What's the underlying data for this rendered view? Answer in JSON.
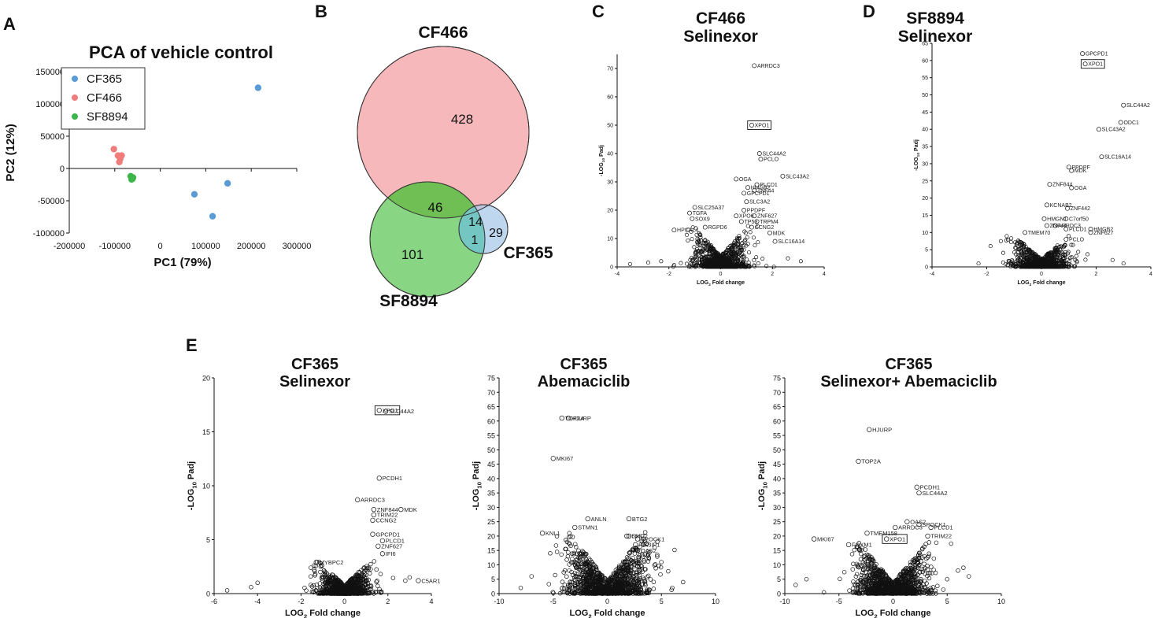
{
  "panels": {
    "A": "A",
    "B": "B",
    "C": "C",
    "D": "D",
    "E": "E"
  },
  "chart_data": [
    {
      "id": "pcaA",
      "type": "scatter",
      "title": "PCA of vehicle control",
      "xlabel": "PC1 (79%)",
      "ylabel": "PC2 (12%)",
      "xlim": [
        -200000,
        300000
      ],
      "ylim": [
        -100000,
        150000
      ],
      "xticks": [
        -200000,
        -100000,
        0,
        100000,
        200000,
        300000
      ],
      "yticks": [
        -100000,
        -50000,
        0,
        50000,
        100000,
        150000
      ],
      "legend_position": "top-left",
      "series": [
        {
          "name": "CF365",
          "color": "#5b9bd5",
          "points": [
            [
              215000,
              125000
            ],
            [
              148000,
              -23000
            ],
            [
              75000,
              -40000
            ],
            [
              115000,
              -74000
            ]
          ]
        },
        {
          "name": "CF466",
          "color": "#f07c7c",
          "points": [
            [
              -102000,
              30000
            ],
            [
              -93000,
              20000
            ],
            [
              -85000,
              20000
            ],
            [
              -90000,
              10000
            ],
            [
              -88000,
              15000
            ]
          ]
        },
        {
          "name": "SF8894",
          "color": "#3cb54a",
          "points": [
            [
              -65000,
              -12000
            ],
            [
              -62000,
              -15000
            ],
            [
              -60000,
              -14000
            ],
            [
              -63000,
              -17000
            ],
            [
              -61000,
              -16000
            ]
          ]
        }
      ]
    },
    {
      "id": "vennB",
      "type": "venn",
      "sets": [
        {
          "name": "CF466",
          "color": "#f7b8bc"
        },
        {
          "name": "SF8894",
          "color": "#7ed37a"
        },
        {
          "name": "CF365",
          "color": "#a9c8ea"
        }
      ],
      "regions": {
        "CF466_only": "428",
        "SF8894_only": "101",
        "CF365_only": "29",
        "CF466_SF8894": "46",
        "CF466_CF365": "14",
        "all_three": "1"
      }
    },
    {
      "id": "volC",
      "type": "scatter",
      "title": [
        "CF466",
        "Selinexor"
      ],
      "xlabel": "LOG2 Fold change",
      "ylabel": "-LOG10 Padj",
      "xlim": [
        -4,
        4
      ],
      "ylim": [
        0,
        75
      ],
      "xticks": [
        -4,
        -2,
        0,
        2,
        4
      ],
      "yticks": [
        0,
        10,
        20,
        30,
        40,
        50,
        60,
        70
      ],
      "labels": [
        {
          "gene": "ARRDC3",
          "x": 1.3,
          "y": 71
        },
        {
          "gene": "XPO1",
          "x": 1.2,
          "y": 50,
          "boxed": true
        },
        {
          "gene": "SLC44A2",
          "x": 1.5,
          "y": 40
        },
        {
          "gene": "PCLO",
          "x": 1.55,
          "y": 38
        },
        {
          "gene": "SLC43A2",
          "x": 2.4,
          "y": 32
        },
        {
          "gene": "OGA",
          "x": 0.6,
          "y": 31
        },
        {
          "gene": "HMGB2",
          "x": 1.05,
          "y": 28
        },
        {
          "gene": "PLCD1",
          "x": 1.4,
          "y": 29
        },
        {
          "gene": "ZNF44",
          "x": 1.3,
          "y": 27
        },
        {
          "gene": "GPCPD1",
          "x": 0.9,
          "y": 26
        },
        {
          "gene": "SLC3A2",
          "x": 1.0,
          "y": 23
        },
        {
          "gene": "PPDPF",
          "x": 0.9,
          "y": 20
        },
        {
          "gene": "SLC25A37",
          "x": -1.0,
          "y": 21
        },
        {
          "gene": "TGFA",
          "x": -1.2,
          "y": 19
        },
        {
          "gene": "SOX9",
          "x": -1.1,
          "y": 17
        },
        {
          "gene": "XPO6",
          "x": 0.6,
          "y": 18
        },
        {
          "gene": "ZNF627",
          "x": 1.3,
          "y": 18
        },
        {
          "gene": "TP53",
          "x": 0.8,
          "y": 16
        },
        {
          "gene": "TRPM4",
          "x": 1.4,
          "y": 16
        },
        {
          "gene": "CCNG2",
          "x": 1.2,
          "y": 14
        },
        {
          "gene": "RGPD6",
          "x": -0.6,
          "y": 14
        },
        {
          "gene": "MDK",
          "x": 1.9,
          "y": 12
        },
        {
          "gene": "HPCAL4",
          "x": -1.8,
          "y": 13
        },
        {
          "gene": "SLC16A14",
          "x": 2.1,
          "y": 9
        }
      ],
      "cloud": {
        "xspread": 1.2,
        "ymax": 15,
        "extra": [
          [
            -3.5,
            1
          ],
          [
            -2.8,
            1.5
          ],
          [
            -2.3,
            2
          ],
          [
            3.1,
            2
          ],
          [
            2.6,
            3
          ]
        ]
      }
    },
    {
      "id": "volD",
      "type": "scatter",
      "title": [
        "SF8894",
        "Selinexor"
      ],
      "xlabel": "LOG2 Fold change",
      "ylabel": "-LOG10 Padj",
      "xlim": [
        -4,
        4
      ],
      "ylim": [
        0,
        65
      ],
      "xticks": [
        -4,
        -2,
        0,
        2,
        4
      ],
      "yticks": [
        0,
        5,
        10,
        15,
        20,
        25,
        30,
        35,
        40,
        45,
        50,
        55,
        60,
        65
      ],
      "labels": [
        {
          "gene": "GPCPD1",
          "x": 1.5,
          "y": 62
        },
        {
          "gene": "XPO1",
          "x": 1.6,
          "y": 59,
          "boxed": true
        },
        {
          "gene": "SLC44A2",
          "x": 3.0,
          "y": 47
        },
        {
          "gene": "ODC1",
          "x": 2.9,
          "y": 42
        },
        {
          "gene": "SLC43A2",
          "x": 2.1,
          "y": 40
        },
        {
          "gene": "SLC16A14",
          "x": 2.2,
          "y": 32
        },
        {
          "gene": "PPDPF",
          "x": 1.0,
          "y": 29
        },
        {
          "gene": "MDK",
          "x": 1.1,
          "y": 28
        },
        {
          "gene": "ZNF844",
          "x": 0.3,
          "y": 24
        },
        {
          "gene": "OGA",
          "x": 1.1,
          "y": 23
        },
        {
          "gene": "KCNAB2",
          "x": 0.2,
          "y": 18
        },
        {
          "gene": "ZNF442",
          "x": 0.95,
          "y": 17
        },
        {
          "gene": "HMGN1",
          "x": 0.1,
          "y": 14
        },
        {
          "gene": "C7orf50",
          "x": 0.9,
          "y": 14
        },
        {
          "gene": "ZNF44",
          "x": 0.2,
          "y": 12
        },
        {
          "gene": "ARRDC3",
          "x": 0.5,
          "y": 12
        },
        {
          "gene": "PLCD1",
          "x": 0.9,
          "y": 11
        },
        {
          "gene": "HMGB2",
          "x": 1.8,
          "y": 11
        },
        {
          "gene": "ZNF627",
          "x": 1.8,
          "y": 10
        },
        {
          "gene": "TMEM70",
          "x": -0.6,
          "y": 10
        },
        {
          "gene": "PCLO",
          "x": 0.9,
          "y": 8
        }
      ],
      "cloud": {
        "xspread": 1.1,
        "ymax": 9,
        "extra": [
          [
            -2.3,
            1
          ],
          [
            2.6,
            2
          ],
          [
            3.0,
            1
          ]
        ]
      }
    },
    {
      "id": "volE1",
      "type": "scatter",
      "title": [
        "CF365",
        "Selinexor"
      ],
      "xlabel": "LOG2 Fold change",
      "ylabel": "-LOG10 Padj",
      "xlim": [
        -6,
        4
      ],
      "ylim": [
        0,
        20
      ],
      "xticks": [
        -6,
        -4,
        -2,
        0,
        2,
        4
      ],
      "yticks": [
        0,
        5,
        10,
        15,
        20
      ],
      "labels": [
        {
          "gene": "XPO1",
          "x": 1.6,
          "y": 17.0,
          "boxed": true
        },
        {
          "gene": "SLC44A2",
          "x": 1.9,
          "y": 16.9
        },
        {
          "gene": "PCDH1",
          "x": 1.6,
          "y": 10.7
        },
        {
          "gene": "ARRDC3",
          "x": 0.6,
          "y": 8.7
        },
        {
          "gene": "ZNF844",
          "x": 1.35,
          "y": 7.8
        },
        {
          "gene": "MDK",
          "x": 2.6,
          "y": 7.8
        },
        {
          "gene": "TRIM22",
          "x": 1.35,
          "y": 7.3
        },
        {
          "gene": "CCNG2",
          "x": 1.3,
          "y": 6.8
        },
        {
          "gene": "GPCPD1",
          "x": 1.3,
          "y": 5.5
        },
        {
          "gene": "PLCD1",
          "x": 1.75,
          "y": 4.9
        },
        {
          "gene": "ZNF627",
          "x": 1.55,
          "y": 4.4
        },
        {
          "gene": "IFI6",
          "x": 1.75,
          "y": 3.7
        },
        {
          "gene": "C5AR1",
          "x": 3.4,
          "y": 1.2
        },
        {
          "gene": "MYBPC2",
          "x": -1.3,
          "y": 2.9
        }
      ],
      "cloud": {
        "xspread": 1.3,
        "ymax": 3,
        "extra": [
          [
            -5.4,
            0.3
          ],
          [
            -4.3,
            0.6
          ],
          [
            -4.0,
            1
          ],
          [
            -1.4,
            2.6
          ],
          [
            -1.1,
            2.8
          ],
          [
            2.8,
            1.2
          ],
          [
            3.0,
            1.5
          ]
        ]
      }
    },
    {
      "id": "volE2",
      "type": "scatter",
      "title": [
        "CF365",
        "Abemaciclib"
      ],
      "xlabel": "LOG2 Fold change",
      "ylabel": "-LOG10 Padj",
      "xlim": [
        -10,
        10
      ],
      "ylim": [
        0,
        75
      ],
      "xticks": [
        -10,
        -5,
        0,
        5,
        10
      ],
      "yticks": [
        0,
        5,
        10,
        15,
        20,
        25,
        30,
        35,
        40,
        45,
        50,
        55,
        60,
        65,
        70,
        75
      ],
      "labels": [
        {
          "gene": "TOP2A",
          "x": -4.2,
          "y": 61
        },
        {
          "gene": "HJURP",
          "x": -3.6,
          "y": 61
        },
        {
          "gene": "MKI67",
          "x": -5.0,
          "y": 47
        },
        {
          "gene": "ANLN",
          "x": -1.8,
          "y": 26
        },
        {
          "gene": "BTG2",
          "x": 2.0,
          "y": 26
        },
        {
          "gene": "STMN1",
          "x": -3.0,
          "y": 23
        },
        {
          "gene": "KNL1",
          "x": -6.0,
          "y": 21
        },
        {
          "gene": "IL6ST",
          "x": 1.8,
          "y": 20
        },
        {
          "gene": "SHC2",
          "x": 2.0,
          "y": 20
        },
        {
          "gene": "SPOCK1",
          "x": 2.8,
          "y": 19
        },
        {
          "gene": "PIK3IP1",
          "x": 2.6,
          "y": 17
        },
        {
          "gene": "OAS2",
          "x": 2.8,
          "y": 15
        }
      ],
      "cloud": {
        "xspread": 3.5,
        "ymax": 22,
        "bimodal": true,
        "extra": [
          [
            -8,
            2
          ],
          [
            -7,
            6
          ],
          [
            6,
            2
          ],
          [
            7,
            4
          ]
        ]
      }
    },
    {
      "id": "volE3",
      "type": "scatter",
      "title": [
        "CF365",
        "Selinexor+ Abemaciclib"
      ],
      "xlabel": "LOG2 Fold change",
      "ylabel": "-LOG10 Padj",
      "xlim": [
        -10,
        10
      ],
      "ylim": [
        0,
        75
      ],
      "xticks": [
        -10,
        -5,
        0,
        5,
        10
      ],
      "yticks": [
        0,
        5,
        10,
        15,
        20,
        25,
        30,
        35,
        40,
        45,
        50,
        55,
        60,
        65,
        70,
        75
      ],
      "labels": [
        {
          "gene": "HJURP",
          "x": -2.2,
          "y": 57
        },
        {
          "gene": "TOP2A",
          "x": -3.2,
          "y": 46
        },
        {
          "gene": "PCDH1",
          "x": 2.2,
          "y": 37
        },
        {
          "gene": "SLC44A2",
          "x": 2.4,
          "y": 35
        },
        {
          "gene": "OAS2",
          "x": 1.3,
          "y": 25
        },
        {
          "gene": "ARRDC3",
          "x": 0.2,
          "y": 23
        },
        {
          "gene": "SPOCK1",
          "x": 2.4,
          "y": 24
        },
        {
          "gene": "PLCD1",
          "x": 3.5,
          "y": 23
        },
        {
          "gene": "TRIM22",
          "x": 3.2,
          "y": 20
        },
        {
          "gene": "TMEM158",
          "x": -2.4,
          "y": 21
        },
        {
          "gene": "XPO1",
          "x": -0.6,
          "y": 19,
          "boxed": true
        },
        {
          "gene": "MKI67",
          "x": -7.3,
          "y": 19
        },
        {
          "gene": "FOXM1",
          "x": -4.1,
          "y": 17
        }
      ],
      "cloud": {
        "xspread": 3.0,
        "ymax": 18,
        "bimodal": true,
        "extra": [
          [
            -9,
            3
          ],
          [
            -8,
            5
          ],
          [
            6,
            8
          ],
          [
            6.5,
            9
          ],
          [
            7,
            6
          ],
          [
            5,
            5
          ]
        ]
      }
    }
  ]
}
